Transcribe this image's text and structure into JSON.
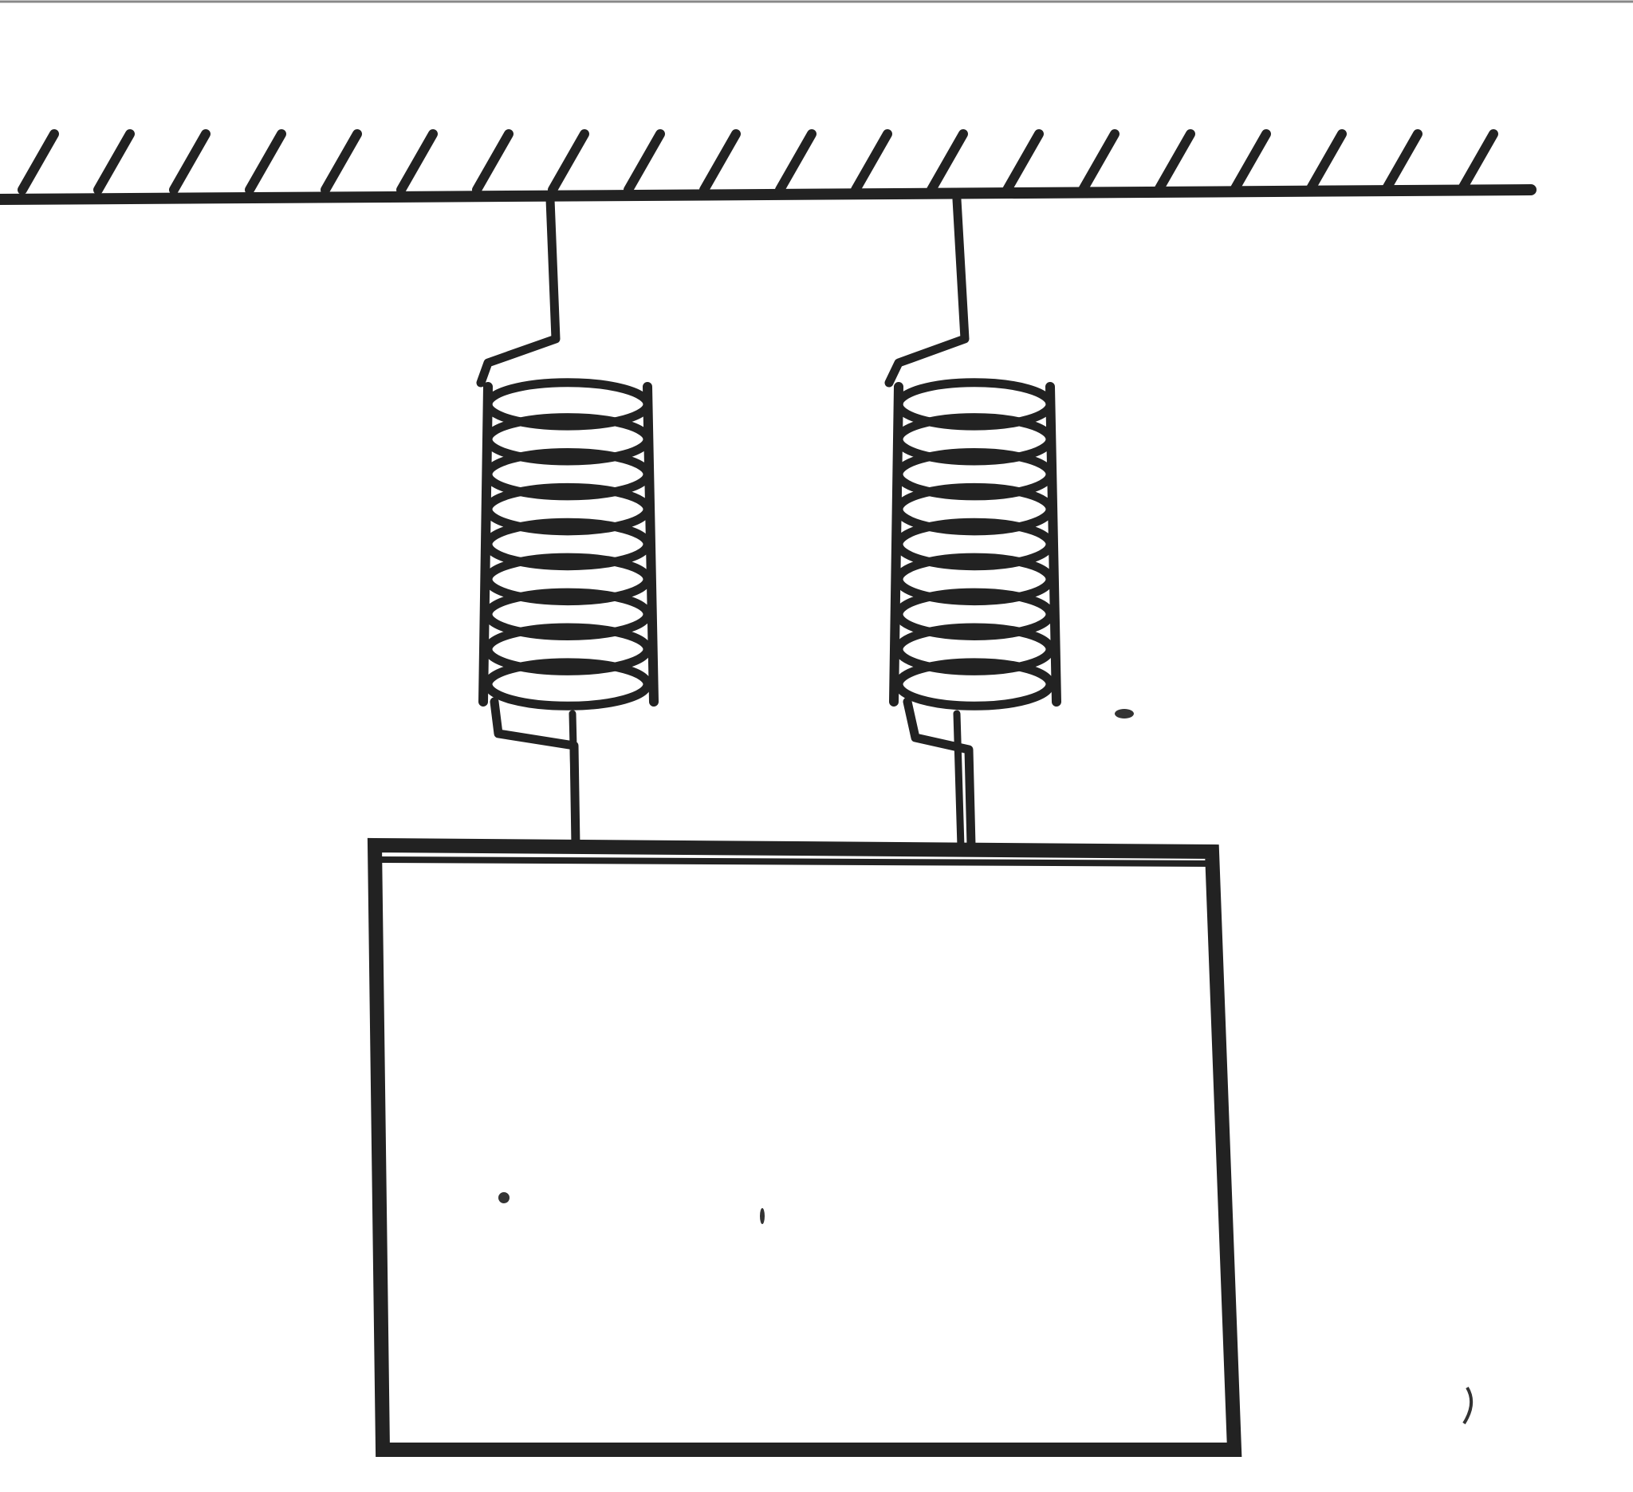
{
  "diagram": {
    "elements": [
      "ceiling",
      "left-spring",
      "right-spring",
      "block"
    ],
    "colors": {
      "ink": "#222222",
      "background": "#ffffff"
    },
    "spring_coil_turns": 9
  }
}
